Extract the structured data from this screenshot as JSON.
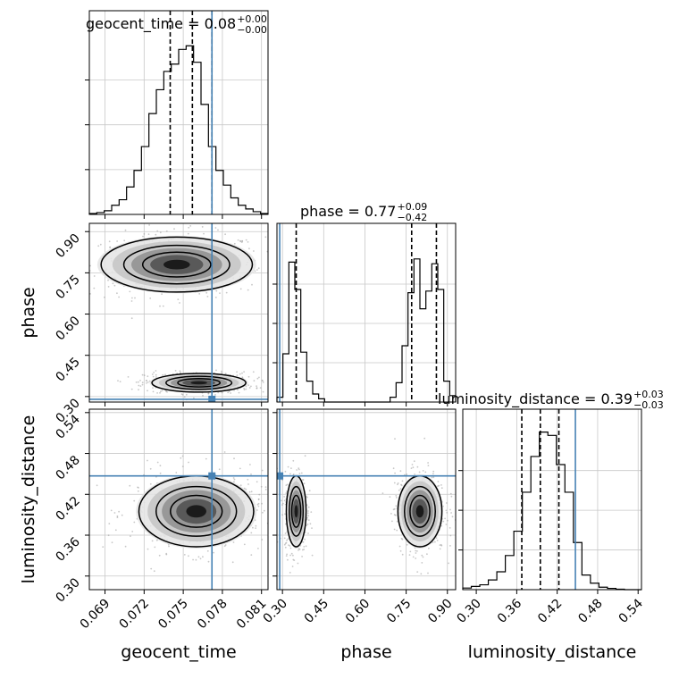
{
  "chart_data": {
    "type": "corner",
    "parameters": [
      "geocent_time",
      "phase",
      "luminosity_distance"
    ],
    "titles": [
      {
        "param": "geocent_time",
        "median": "0.08",
        "plus": "+0.00",
        "minus": "−0.00"
      },
      {
        "param": "phase",
        "median": "0.77",
        "plus": "+0.09",
        "minus": "−0.42"
      },
      {
        "param": "luminosity_distance",
        "median": "0.39",
        "plus": "+0.03",
        "minus": "−0.03"
      }
    ],
    "truth": {
      "geocent_time": 0.0772,
      "phase": 0.29,
      "luminosity_distance": 0.447
    },
    "quantiles": {
      "geocent_time": [
        0.074,
        0.0757,
        0.0772
      ],
      "phase": [
        0.35,
        0.77,
        0.86
      ],
      "luminosity_distance": [
        0.3675,
        0.395,
        0.4225
      ]
    },
    "ticks": {
      "geocent_time": [
        "0.069",
        "0.072",
        "0.075",
        "0.078",
        "0.081"
      ],
      "phase": [
        "0.30",
        "0.45",
        "0.60",
        "0.75",
        "0.90"
      ],
      "luminosity_distance": [
        "0.30",
        "0.36",
        "0.42",
        "0.48",
        "0.54"
      ]
    },
    "ranges": {
      "geocent_time": [
        0.0678,
        0.0815
      ],
      "phase": [
        0.28,
        0.93
      ],
      "luminosity_distance": [
        0.28,
        0.545
      ]
    },
    "histograms": {
      "geocent_time": {
        "edges": [
          0.0678,
          0.0815
        ],
        "counts": [
          0.005,
          0.01,
          0.02,
          0.05,
          0.08,
          0.15,
          0.24,
          0.37,
          0.55,
          0.68,
          0.78,
          0.82,
          0.9,
          0.92,
          0.83,
          0.6,
          0.37,
          0.24,
          0.16,
          0.09,
          0.05,
          0.03,
          0.015,
          0.005
        ]
      },
      "phase": {
        "edges": [
          0.28,
          0.93
        ],
        "counts": [
          0.03,
          0.3,
          0.87,
          0.7,
          0.31,
          0.13,
          0.05,
          0.02,
          0.0,
          0.0,
          0.0,
          0.0,
          0.0,
          0.0,
          0.0,
          0.0,
          0.0,
          0.0,
          0.0,
          0.03,
          0.12,
          0.35,
          0.68,
          0.89,
          0.58,
          0.69,
          0.86,
          0.7,
          0.13,
          0.04
        ]
      },
      "luminosity_distance": {
        "edges": [
          0.28,
          0.545
        ],
        "counts": [
          0.01,
          0.02,
          0.03,
          0.06,
          0.11,
          0.21,
          0.36,
          0.6,
          0.82,
          0.97,
          0.95,
          0.77,
          0.6,
          0.29,
          0.09,
          0.04,
          0.015,
          0.008,
          0.003,
          0.0,
          0.0
        ]
      }
    },
    "blobs_2d": {
      "phase_vs_geocent_time": [
        {
          "cx": 0.0745,
          "cy": 0.78,
          "sx": 0.0029,
          "sy": 0.05
        },
        {
          "cx": 0.0762,
          "cy": 0.35,
          "sx": 0.0018,
          "sy": 0.017
        }
      ],
      "luminosity_distance_vs_geocent_time": [
        {
          "cx": 0.076,
          "cy": 0.395,
          "sx": 0.0022,
          "sy": 0.026
        }
      ],
      "luminosity_distance_vs_phase": [
        {
          "cx": 0.35,
          "cy": 0.395,
          "sx": 0.018,
          "sy": 0.026
        },
        {
          "cx": 0.8,
          "cy": 0.395,
          "sx": 0.04,
          "sy": 0.026
        }
      ]
    },
    "grid": true
  }
}
